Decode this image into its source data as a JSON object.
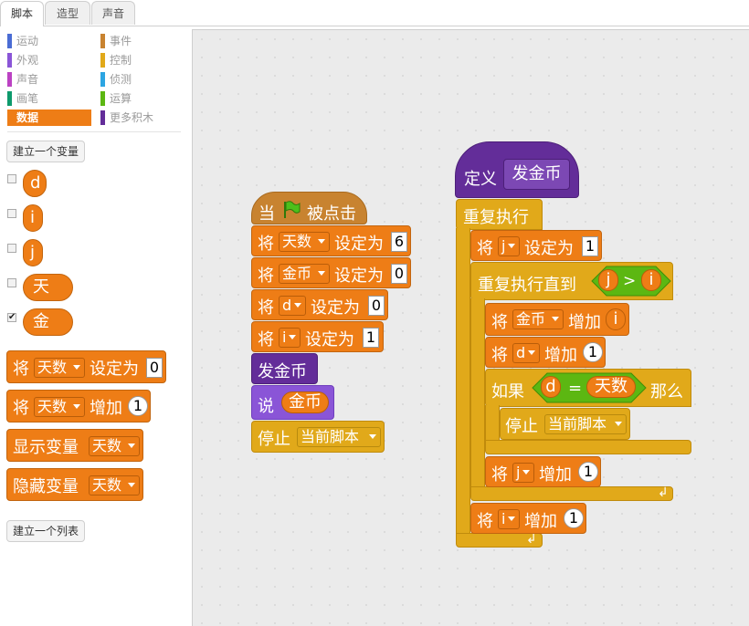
{
  "tabs": [
    "脚本",
    "造型",
    "声音"
  ],
  "categories": {
    "left": [
      {
        "label": "运动",
        "color": "#4a6cd4"
      },
      {
        "label": "外观",
        "color": "#8a55d7"
      },
      {
        "label": "声音",
        "color": "#bb42c3"
      },
      {
        "label": "画笔",
        "color": "#0e9a6c"
      },
      {
        "label": "数据",
        "color": "#ee7d16"
      }
    ],
    "right": [
      {
        "label": "事件",
        "color": "#c88330"
      },
      {
        "label": "控制",
        "color": "#e1a91a"
      },
      {
        "label": "侦测",
        "color": "#2ca5e2"
      },
      {
        "label": "运算",
        "color": "#5cb712"
      },
      {
        "label": "更多积木",
        "color": "#632d99"
      }
    ]
  },
  "palette": {
    "make_var": "建立一个变量",
    "vars": [
      {
        "name": "d",
        "checked": false
      },
      {
        "name": "j",
        "checked": false
      },
      {
        "name": "j",
        "checked": false
      },
      {
        "name": "天数",
        "checked": false
      },
      {
        "name": "金币",
        "checked": true
      }
    ],
    "check_mark": "✔",
    "set_prefix": "将",
    "set_var": "天数",
    "set_mid": "设定为",
    "set_val": "0",
    "change_prefix": "将",
    "change_var": "天数",
    "change_mid": "增加",
    "change_val": "1",
    "show_label": "显示变量",
    "show_var": "天数",
    "hide_label": "隐藏变量",
    "hide_var": "天数",
    "make_list": "建立一个列表"
  },
  "script1": {
    "hat": {
      "when": "当",
      "clicked": "被点击"
    },
    "b1": {
      "p": "将",
      "var": "天数",
      "m": "设定为",
      "v": "6"
    },
    "b2": {
      "p": "将",
      "var": "金币",
      "m": "设定为",
      "v": "0"
    },
    "b3": {
      "p": "将",
      "var": "d",
      "m": "设定为",
      "v": "0"
    },
    "b4": {
      "p": "将",
      "var": "i",
      "m": "设定为",
      "v": "1"
    },
    "call": "发金币",
    "say": {
      "p": "说",
      "v": "金币"
    },
    "stop": {
      "p": "停止",
      "opt": "当前脚本"
    }
  },
  "script2": {
    "define": {
      "p": "定义",
      "name": "发金币"
    },
    "forever": "重复执行",
    "set_j": {
      "p": "将",
      "var": "j",
      "m": "设定为",
      "v": "1"
    },
    "until": {
      "p": "重复执行直到",
      "a": "j",
      "op": ">",
      "b": "i"
    },
    "chg_gold": {
      "p": "将",
      "var": "金币",
      "m": "增加",
      "v": "i"
    },
    "chg_d": {
      "p": "将",
      "var": "d",
      "m": "增加",
      "v": "1"
    },
    "if": {
      "p": "如果",
      "a": "d",
      "op": "=",
      "b": "天数",
      "then": "那么"
    },
    "stop": {
      "p": "停止",
      "opt": "当前脚本"
    },
    "chg_j": {
      "p": "将",
      "var": "j",
      "m": "增加",
      "v": "1"
    },
    "chg_i": {
      "p": "将",
      "var": "i",
      "m": "增加",
      "v": "1"
    },
    "loop_arrow": "↲"
  }
}
